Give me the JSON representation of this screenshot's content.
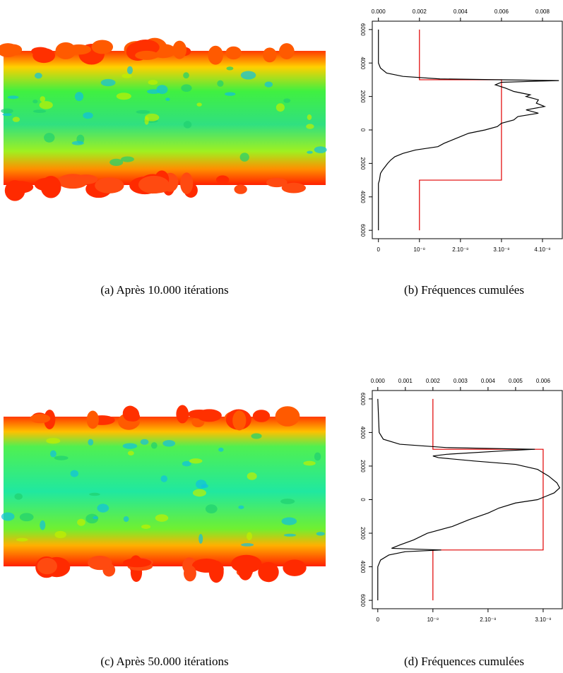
{
  "captions": [
    "(a) Après 10.000 itérations",
    "(b) Fréquences cumulées",
    "(c) Après 50.000 itérations",
    "(d) Fréquences cumulées"
  ],
  "chart_data": [
    {
      "type": "line",
      "ylim": [
        -6500,
        6500
      ],
      "yticks": [
        {
          "value": 6000,
          "label": "6000"
        },
        {
          "value": 4000,
          "label": "4000"
        },
        {
          "value": 2000,
          "label": "2000"
        },
        0,
        {
          "value": -2000,
          "label": "2000"
        },
        {
          "value": -4000,
          "label": "4000"
        },
        {
          "value": -6000,
          "label": "6000"
        }
      ],
      "xlim": [
        -1.5e-09,
        4.5e-08
      ],
      "xticks": [
        0,
        {
          "value": 1e-08,
          "label": "10⁻⁸"
        },
        {
          "value": 2e-08,
          "label": "2.10⁻⁸"
        },
        {
          "value": 3e-08,
          "label": "3.10⁻⁸"
        },
        {
          "value": 4e-08,
          "label": "4.10⁻⁸"
        }
      ],
      "x2lim": [
        -0.0003,
        0.009
      ],
      "x2ticks": [
        {
          "value": 0,
          "label": "0.000"
        },
        {
          "value": 0.002,
          "label": "0.002"
        },
        {
          "value": 0.004,
          "label": "0.004"
        },
        {
          "value": 0.006,
          "label": "0.006"
        },
        {
          "value": 0.008,
          "label": "0.008"
        }
      ],
      "series": [
        {
          "color": "#000000",
          "axis": "x2",
          "y": [
            6000,
            4000,
            3700,
            3400,
            3200,
            3050,
            2950,
            2850,
            2700,
            2500,
            2300,
            2100,
            2000,
            1800,
            1600,
            1400,
            1200,
            1000,
            800,
            600,
            400,
            200,
            0,
            -200,
            -400,
            -600,
            -800,
            -1000,
            -1200,
            -1400,
            -1600,
            -1800,
            -2000,
            -2400,
            -2600,
            -3000,
            -3200,
            -6000
          ],
          "values": [
            0,
            0,
            0.0001,
            0.0004,
            0.0012,
            0.003,
            0.0088,
            0.006,
            0.0057,
            0.0062,
            0.0066,
            0.0074,
            0.0072,
            0.0078,
            0.0077,
            0.0081,
            0.0072,
            0.0078,
            0.0068,
            0.0066,
            0.006,
            0.0058,
            0.0052,
            0.0044,
            0.004,
            0.0036,
            0.0032,
            0.0029,
            0.0018,
            0.0012,
            0.0008,
            0.0006,
            0.00045,
            0.0002,
            0.0001,
            5e-05,
            0,
            0
          ]
        },
        {
          "color": "#e00000",
          "y": [
            6000,
            3000,
            3000,
            -3000,
            -3000,
            -6000
          ],
          "values": [
            1e-08,
            1e-08,
            3e-08,
            3e-08,
            1e-08,
            1e-08
          ]
        }
      ]
    },
    {
      "type": "line",
      "ylim": [
        -6500,
        6500
      ],
      "yticks": [
        {
          "value": 6000,
          "label": "6000"
        },
        {
          "value": 4000,
          "label": "4000"
        },
        {
          "value": 2000,
          "label": "2000"
        },
        0,
        {
          "value": -2000,
          "label": "2000"
        },
        {
          "value": -4000,
          "label": "4000"
        },
        {
          "value": -6000,
          "label": "6000"
        }
      ],
      "xlim": [
        -1e-09,
        3.36e-08
      ],
      "xticks": [
        0,
        {
          "value": 1e-08,
          "label": "10⁻⁸"
        },
        {
          "value": 2e-08,
          "label": "2.10⁻⁸"
        },
        {
          "value": 3e-08,
          "label": "3.10⁻⁸"
        }
      ],
      "x2lim": [
        -0.0002,
        0.00672
      ],
      "x2ticks": [
        {
          "value": 0,
          "label": "0.000"
        },
        {
          "value": 0.001,
          "label": "0.001"
        },
        {
          "value": 0.002,
          "label": "0.002"
        },
        {
          "value": 0.003,
          "label": "0.003"
        },
        {
          "value": 0.004,
          "label": "0.004"
        },
        {
          "value": 0.005,
          "label": "0.005"
        },
        {
          "value": 0.006,
          "label": "0.006"
        }
      ],
      "series": [
        {
          "color": "#000000",
          "axis": "x2",
          "y": [
            6000,
            4000,
            3600,
            3300,
            3100,
            3000,
            2900,
            2700,
            2600,
            2500,
            2300,
            2100,
            1800,
            1400,
            1000,
            700,
            400,
            200,
            0,
            -200,
            -500,
            -800,
            -1200,
            -1600,
            -2000,
            -2400,
            -2700,
            -2900,
            -3000,
            -3100,
            -3300,
            -3600,
            -4000,
            -6000
          ],
          "values": [
            0,
            5e-05,
            0.0002,
            0.0008,
            0.0025,
            0.0057,
            0.0045,
            0.0025,
            0.002,
            0.0022,
            0.0035,
            0.005,
            0.0058,
            0.0062,
            0.0065,
            0.0066,
            0.0064,
            0.0061,
            0.0058,
            0.005,
            0.0044,
            0.004,
            0.0033,
            0.0027,
            0.0018,
            0.0013,
            0.0008,
            0.0005,
            0.0023,
            0.001,
            0.0004,
            0.0001,
            0,
            0
          ]
        },
        {
          "color": "#e00000",
          "y": [
            6000,
            3000,
            3000,
            -3000,
            -3000,
            -6000
          ],
          "values": [
            1e-08,
            1e-08,
            3e-08,
            3e-08,
            1e-08,
            1e-08
          ]
        }
      ]
    }
  ]
}
